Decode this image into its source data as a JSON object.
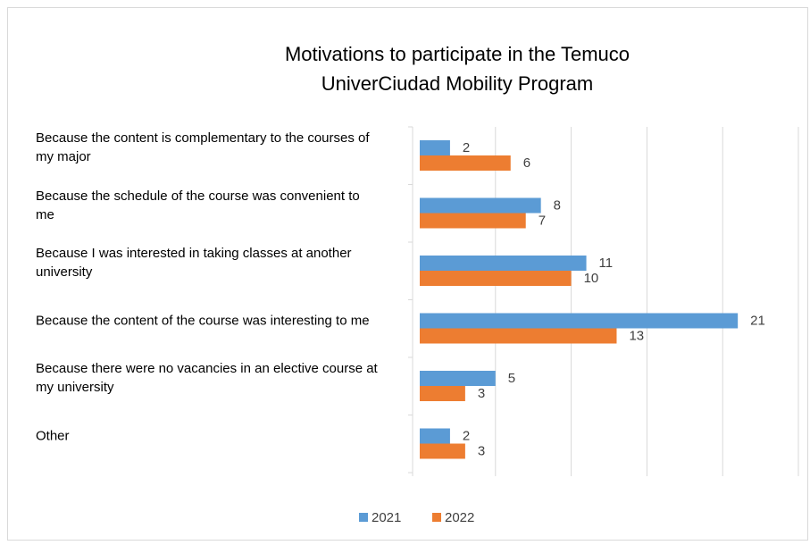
{
  "chart_data": {
    "type": "hbar",
    "title": "Motivations to participate in the Temuco UniverCiudad Mobility Program",
    "categories": [
      "Because the content is complementary to the courses of my major",
      "Because the schedule of the course was convenient to me",
      "Because I was interested in taking classes at another university",
      "Because the content of the course was interesting to me",
      "Because there were no vacancies in an elective course at my university",
      "Other"
    ],
    "series": [
      {
        "name": "2021",
        "color": "#5b9bd5",
        "values": [
          2,
          8,
          11,
          21,
          5,
          2
        ]
      },
      {
        "name": "2022",
        "color": "#ed7d31",
        "values": [
          6,
          7,
          10,
          13,
          3,
          3
        ]
      }
    ],
    "xlim": [
      0,
      25
    ],
    "xticks": [
      0,
      5,
      10,
      15,
      20,
      25
    ],
    "grid": true,
    "legend": "bottom"
  }
}
